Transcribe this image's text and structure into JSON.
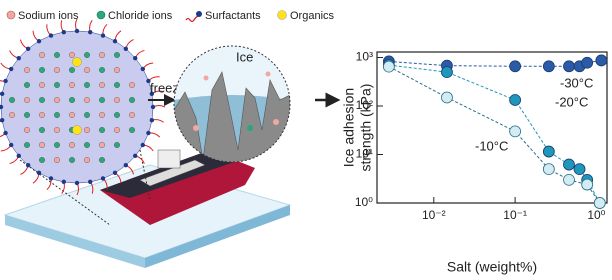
{
  "legend": {
    "items": [
      "Sodium ions",
      "Chloride ions",
      "Surfactants",
      "Organics"
    ]
  },
  "schematic": {
    "freeze_label": "freeze",
    "ice_label": "Ice"
  },
  "chart_data": {
    "type": "line",
    "xlabel": "Salt (weight%)",
    "ylabel": [
      "Ice adhesion",
      "strength (kPa)"
    ],
    "xscale": "log",
    "yscale": "log",
    "xlim": [
      0.002,
      1.35
    ],
    "ylim": [
      1,
      1300
    ],
    "xticks": [
      {
        "value": 0.01,
        "label": "10⁻²"
      },
      {
        "value": 0.1,
        "label": "10⁻¹"
      },
      {
        "value": 1,
        "label": "10⁰"
      }
    ],
    "yticks": [
      {
        "value": 1,
        "label": "10⁰"
      },
      {
        "value": 10,
        "label": "10¹"
      },
      {
        "value": 100,
        "label": "10²"
      },
      {
        "value": 1000,
        "label": "10³"
      }
    ],
    "series": [
      {
        "name": "-30°C",
        "color": "#2b5aa8",
        "x": [
          0.0028,
          0.0145,
          0.1,
          0.26,
          0.46,
          0.62,
          0.77,
          1.15
        ],
        "values": [
          830,
          680,
          660,
          660,
          660,
          660,
          780,
          870
        ]
      },
      {
        "name": "-20°C",
        "color": "#1f97bd",
        "x": [
          0.0028,
          0.0145,
          0.1,
          0.26,
          0.46,
          0.62,
          0.77,
          1.1
        ],
        "values": [
          700,
          500,
          133,
          11.5,
          6.2,
          5,
          3,
          1
        ]
      },
      {
        "name": "-10°C",
        "color": "#d2ecf2",
        "x": [
          0.0028,
          0.0145,
          0.1,
          0.26,
          0.46,
          0.77,
          1.1
        ],
        "values": [
          650,
          150,
          30,
          5,
          3,
          2.4,
          1
        ]
      }
    ]
  }
}
